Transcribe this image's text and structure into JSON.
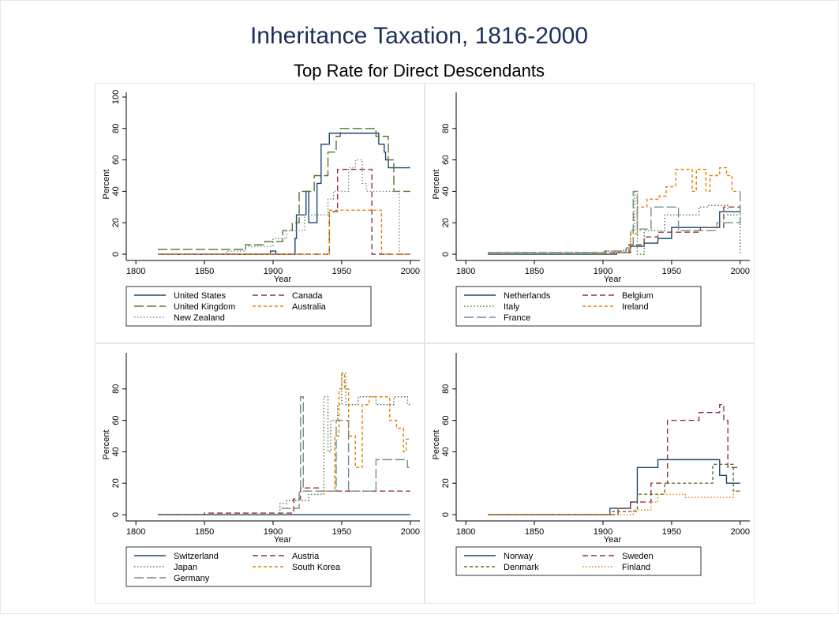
{
  "title": "Inheritance Taxation, 1816-2000",
  "subtitle": "Top Rate for Direct Descendants",
  "chart_data": [
    {
      "type": "line",
      "step": "post",
      "xlabel": "Year",
      "ylabel": "Percent",
      "xlim": [
        1793,
        2007
      ],
      "xticks": [
        1800,
        1850,
        1900,
        1950,
        2000
      ],
      "ylim": [
        -4,
        103
      ],
      "yticks": [
        0,
        20,
        40,
        60,
        80,
        100
      ],
      "series": [
        {
          "name": "United States",
          "color": "#1a476f",
          "line_style": "solid",
          "x": [
            1816,
            1898,
            1902,
            1916,
            1917,
            1924,
            1926,
            1932,
            1935,
            1941,
            1977,
            1981,
            1982,
            1984,
            1985,
            2000
          ],
          "values": [
            0,
            2,
            0,
            10,
            25,
            40,
            20,
            45,
            70,
            77,
            70,
            65,
            60,
            55,
            55,
            55
          ]
        },
        {
          "name": "Canada",
          "color": "#90353b",
          "line_style": "dash",
          "x": [
            1816,
            1941,
            1947,
            1972,
            2000
          ],
          "values": [
            0,
            27,
            54,
            0,
            0
          ]
        },
        {
          "name": "United Kingdom",
          "color": "#55752f",
          "line_style": "longdash",
          "x": [
            1816,
            1880,
            1894,
            1907,
            1910,
            1914,
            1919,
            1930,
            1934,
            1940,
            1946,
            1949,
            1975,
            1984,
            1986,
            1988,
            2000
          ],
          "values": [
            3,
            6,
            8,
            15,
            15,
            20,
            40,
            50,
            50,
            65,
            75,
            80,
            75,
            60,
            60,
            40,
            40
          ]
        },
        {
          "name": "Australia",
          "color": "#e37e00",
          "line_style": "shortdash",
          "x": [
            1816,
            1941,
            1979,
            2000
          ],
          "values": [
            0,
            28,
            0,
            0
          ]
        },
        {
          "name": "New Zealand",
          "color": "#6e8e84",
          "line_style": "dot",
          "x": [
            1816,
            1866,
            1880,
            1900,
            1910,
            1923,
            1940,
            1944,
            1950,
            1955,
            1960,
            1965,
            1968,
            1973,
            1990,
            1992,
            2000
          ],
          "values": [
            0,
            2,
            5,
            10,
            15,
            25,
            35,
            40,
            40,
            55,
            60,
            45,
            40,
            40,
            40,
            0,
            0
          ]
        }
      ]
    },
    {
      "type": "line",
      "step": "post",
      "xlabel": "Year",
      "ylabel": "Percent",
      "xlim": [
        1793,
        2007
      ],
      "xticks": [
        1800,
        1850,
        1900,
        1950,
        2000
      ],
      "ylim": [
        -4,
        103
      ],
      "yticks": [
        0,
        20,
        40,
        60,
        80
      ],
      "series": [
        {
          "name": "Netherlands",
          "color": "#1a476f",
          "line_style": "solid",
          "x": [
            1816,
            1910,
            1920,
            1930,
            1940,
            1950,
            1970,
            1980,
            1985,
            2000
          ],
          "values": [
            0,
            1,
            5,
            7,
            10,
            17,
            17,
            17,
            27,
            27
          ]
        },
        {
          "name": "Belgium",
          "color": "#90353b",
          "line_style": "dash",
          "x": [
            1816,
            1906,
            1919,
            1930,
            1940,
            1950,
            1960,
            1971,
            1988,
            2000
          ],
          "values": [
            1,
            1,
            6,
            11,
            14,
            14,
            14,
            17,
            30,
            30
          ]
        },
        {
          "name": "Italy",
          "color": "#55752f",
          "line_style": "dot",
          "x": [
            1816,
            1902,
            1915,
            1920,
            1923,
            1925,
            1930,
            1945,
            1950,
            1970,
            1976,
            1991,
            2000
          ],
          "values": [
            0,
            2,
            3,
            15,
            40,
            0,
            15,
            25,
            25,
            30,
            31,
            25,
            0
          ]
        },
        {
          "name": "Ireland",
          "color": "#e37e00",
          "line_style": "shortdash",
          "x": [
            1816,
            1908,
            1920,
            1925,
            1932,
            1941,
            1946,
            1953,
            1958,
            1965,
            1968,
            1975,
            1978,
            1985,
            1990,
            1994,
            2000
          ],
          "values": [
            1,
            1,
            13,
            30,
            35,
            37,
            43,
            54,
            54,
            40,
            54,
            40,
            50,
            55,
            50,
            40,
            40
          ]
        },
        {
          "name": "France",
          "color": "#6e8e84",
          "line_style": "longdash",
          "x": [
            1816,
            1901,
            1917,
            1922,
            1925,
            1927,
            1935,
            1945,
            1955,
            1972,
            1983,
            2000
          ],
          "values": [
            1,
            2,
            4,
            40,
            15,
            16,
            30,
            30,
            15,
            15,
            20,
            40
          ]
        }
      ]
    },
    {
      "type": "line",
      "step": "post",
      "xlabel": "Year",
      "ylabel": "Percent",
      "xlim": [
        1793,
        2007
      ],
      "xticks": [
        1800,
        1850,
        1900,
        1950,
        2000
      ],
      "ylim": [
        -4,
        103
      ],
      "yticks": [
        0,
        20,
        40,
        60,
        80
      ],
      "series": [
        {
          "name": "Switzerland",
          "color": "#1a476f",
          "line_style": "solid",
          "x": [
            1816,
            2000
          ],
          "values": [
            0,
            0
          ]
        },
        {
          "name": "Austria",
          "color": "#90353b",
          "line_style": "dash",
          "x": [
            1816,
            1850,
            1900,
            1915,
            1920,
            1933,
            2000
          ],
          "values": [
            0,
            1,
            1,
            10,
            17,
            15,
            15
          ]
        },
        {
          "name": "Japan",
          "color": "#55752f",
          "line_style": "dot",
          "x": [
            1816,
            1905,
            1910,
            1926,
            1937,
            1940,
            1942,
            1947,
            1950,
            1953,
            1958,
            1962,
            1975,
            1988,
            1998,
            2000
          ],
          "values": [
            0,
            7,
            9,
            13,
            75,
            40,
            60,
            70,
            90,
            70,
            70,
            75,
            70,
            75,
            70,
            70
          ]
        },
        {
          "name": "South Korea",
          "color": "#e37e00",
          "line_style": "shortdash",
          "x": [
            1934,
            1945,
            1948,
            1950,
            1952,
            1955,
            1960,
            1965,
            1970,
            1975,
            1985,
            1990,
            1995,
            1997,
            2000
          ],
          "values": [
            15,
            50,
            80,
            90,
            80,
            50,
            30,
            70,
            75,
            75,
            60,
            55,
            40,
            48,
            48
          ]
        },
        {
          "name": "Germany",
          "color": "#6e8e84",
          "line_style": "longdash",
          "x": [
            1906,
            1919,
            1920,
            1922,
            1925,
            1940,
            1946,
            1955,
            1975,
            1998,
            2000
          ],
          "values": [
            4,
            15,
            75,
            15,
            15,
            15,
            60,
            15,
            35,
            30,
            30
          ]
        }
      ]
    },
    {
      "type": "line",
      "step": "post",
      "xlabel": "Year",
      "ylabel": "Percent",
      "xlim": [
        1793,
        2007
      ],
      "xticks": [
        1800,
        1850,
        1900,
        1950,
        2000
      ],
      "ylim": [
        -4,
        103
      ],
      "yticks": [
        0,
        20,
        40,
        60,
        80
      ],
      "series": [
        {
          "name": "Norway",
          "color": "#1a476f",
          "line_style": "solid",
          "x": [
            1816,
            1905,
            1915,
            1920,
            1925,
            1935,
            1940,
            1980,
            1985,
            1990,
            2000
          ],
          "values": [
            0,
            4,
            4,
            8,
            30,
            30,
            35,
            35,
            25,
            20,
            20
          ]
        },
        {
          "name": "Sweden",
          "color": "#90353b",
          "line_style": "dash",
          "x": [
            1816,
            1895,
            1911,
            1920,
            1935,
            1947,
            1970,
            1980,
            1985,
            1988,
            1991,
            2000
          ],
          "values": [
            0,
            0,
            4,
            8,
            20,
            60,
            65,
            65,
            70,
            60,
            30,
            30
          ]
        },
        {
          "name": "Denmark",
          "color": "#55752f",
          "line_style": "shortdash",
          "x": [
            1816,
            1905,
            1925,
            1935,
            1945,
            1965,
            1980,
            1995,
            2000
          ],
          "values": [
            0,
            2,
            13,
            13,
            20,
            20,
            32,
            15,
            15
          ]
        },
        {
          "name": "Finland",
          "color": "#e37e00",
          "line_style": "dot",
          "x": [
            1816,
            1922,
            1935,
            1940,
            1960,
            1970,
            1995,
            2000
          ],
          "values": [
            0,
            3,
            8,
            13,
            11,
            11,
            15,
            15
          ]
        }
      ]
    }
  ]
}
